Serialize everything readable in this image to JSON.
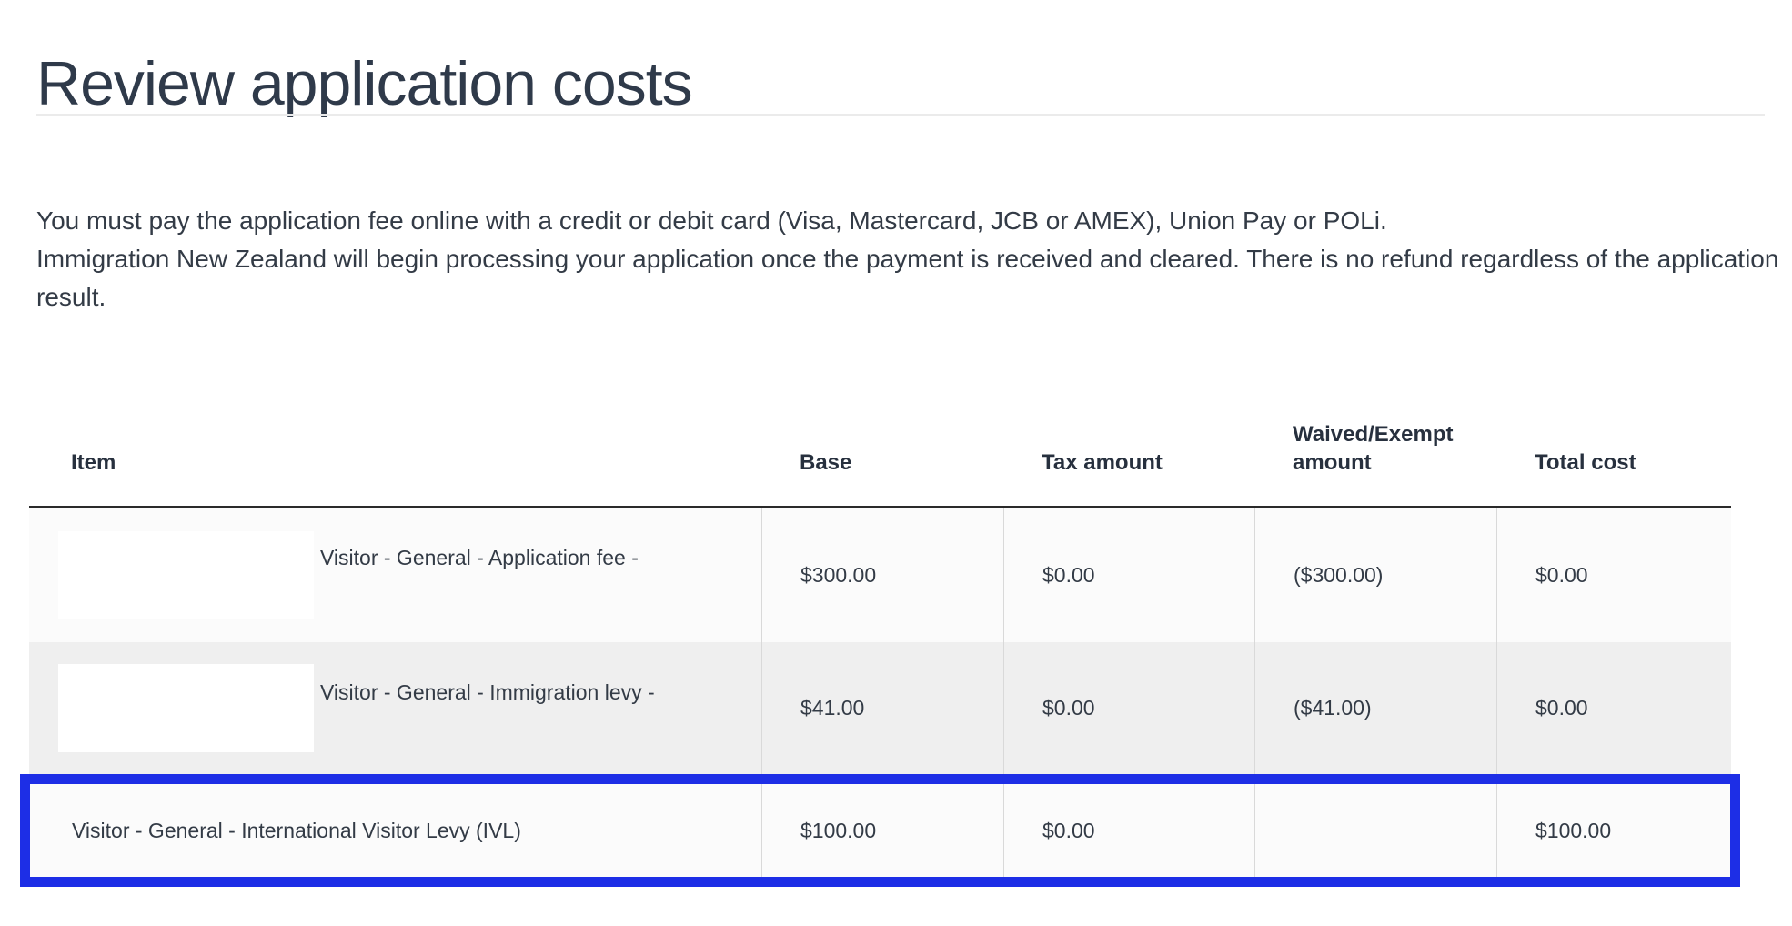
{
  "page": {
    "title": "Review application costs",
    "intro_lines": [
      "You must pay the application fee online with a credit or debit card (Visa, Mastercard, JCB or AMEX), Union Pay or POLi.",
      "Immigration New Zealand will begin processing your application once the payment is received and cleared. There is no refund regardless of the application",
      "result."
    ]
  },
  "table": {
    "columns": [
      "Item",
      "Base",
      "Tax amount",
      "Waived/Exempt amount",
      "Total cost"
    ],
    "rows": [
      {
        "item": "Visitor - General - Application fee -",
        "base": "$300.00",
        "tax": "$0.00",
        "waived": "($300.00)",
        "total": "$0.00",
        "redacted": "true",
        "highlighted": "false"
      },
      {
        "item": "Visitor - General - Immigration levy -",
        "base": "$41.00",
        "tax": "$0.00",
        "waived": "($41.00)",
        "total": "$0.00",
        "redacted": "true",
        "highlighted": "false"
      },
      {
        "item": "Visitor - General - International Visitor Levy (IVL)",
        "base": "$100.00",
        "tax": "$0.00",
        "waived": "",
        "total": "$100.00",
        "redacted": "false",
        "highlighted": "true"
      }
    ]
  },
  "colors": {
    "highlight_border": "#1d2ee6",
    "header_rule": "#2a2a2a",
    "row_light": "#fbfbfb",
    "row_alt": "#efefef",
    "cell_divider": "#d9d9d9",
    "heading_text": "#2f3a4a",
    "body_text": "#333b46"
  }
}
